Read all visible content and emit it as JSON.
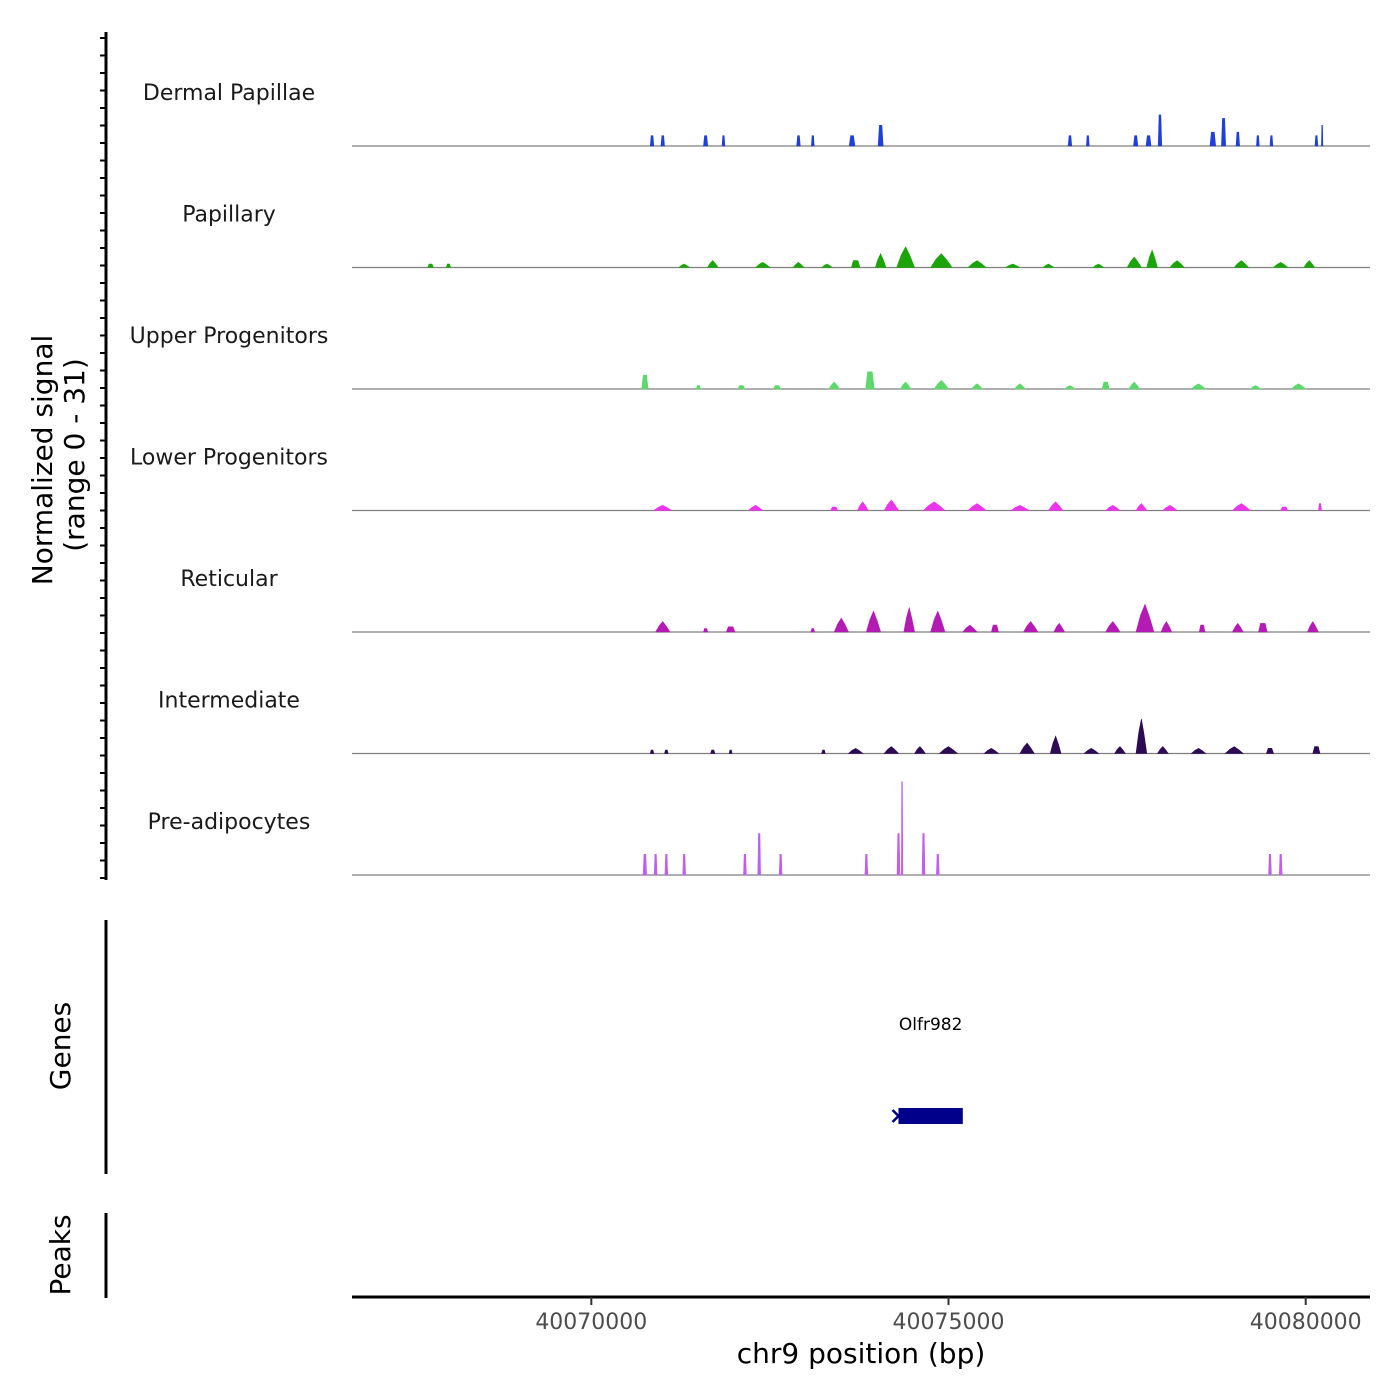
{
  "chart_data": {
    "type": "area",
    "title": "",
    "ylabel_line1": "Normalized signal",
    "ylabel_line2": "(range 0 - 31)",
    "xlabel": "chr9 position (bp)",
    "xlim": [
      40066650,
      40080900
    ],
    "ylim": [
      0,
      31
    ],
    "x_ticks": [
      40070000,
      40075000,
      40080000
    ],
    "x_tick_labels": [
      "40070000",
      "40075000",
      "40080000"
    ],
    "series": [
      {
        "name": "Dermal Papillae",
        "color": "#1f3fdc",
        "peaks": [
          [
            40070850,
            50,
            3
          ],
          [
            40071000,
            50,
            3
          ],
          [
            40071600,
            60,
            3
          ],
          [
            40071850,
            40,
            3
          ],
          [
            40072900,
            50,
            3
          ],
          [
            40073100,
            40,
            3
          ],
          [
            40073650,
            80,
            3
          ],
          [
            40074050,
            70,
            6
          ],
          [
            40076700,
            50,
            3
          ],
          [
            40076950,
            40,
            3
          ],
          [
            40077620,
            60,
            3
          ],
          [
            40077800,
            70,
            3
          ],
          [
            40077960,
            50,
            9
          ],
          [
            40078700,
            80,
            4
          ],
          [
            40078850,
            60,
            8
          ],
          [
            40079050,
            50,
            4
          ],
          [
            40079330,
            40,
            3
          ],
          [
            40079520,
            40,
            3
          ],
          [
            40080150,
            40,
            3
          ],
          [
            40080230,
            20,
            6
          ]
        ]
      },
      {
        "name": "Papillary",
        "color": "#1ba50b",
        "peaks": [
          [
            40067750,
            80,
            1
          ],
          [
            40068000,
            60,
            1
          ],
          [
            40071300,
            150,
            1
          ],
          [
            40071700,
            150,
            2
          ],
          [
            40072400,
            200,
            1.5
          ],
          [
            40072900,
            150,
            1.5
          ],
          [
            40073300,
            150,
            1
          ],
          [
            40073700,
            120,
            2
          ],
          [
            40074050,
            150,
            4
          ],
          [
            40074400,
            250,
            6
          ],
          [
            40074900,
            300,
            4
          ],
          [
            40075400,
            250,
            2
          ],
          [
            40075900,
            200,
            1
          ],
          [
            40076400,
            150,
            1
          ],
          [
            40077100,
            150,
            1
          ],
          [
            40077600,
            200,
            3
          ],
          [
            40077850,
            150,
            5
          ],
          [
            40078200,
            200,
            2
          ],
          [
            40079100,
            200,
            2
          ],
          [
            40079650,
            200,
            1.5
          ],
          [
            40080050,
            150,
            2
          ]
        ]
      },
      {
        "name": "Upper Progenitors",
        "color": "#5dd86a",
        "peaks": [
          [
            40070750,
            90,
            4
          ],
          [
            40071500,
            60,
            1
          ],
          [
            40072100,
            100,
            1
          ],
          [
            40072600,
            100,
            1
          ],
          [
            40073400,
            150,
            2
          ],
          [
            40073900,
            120,
            5
          ],
          [
            40074400,
            150,
            2
          ],
          [
            40074900,
            200,
            2.5
          ],
          [
            40075400,
            150,
            1.5
          ],
          [
            40076000,
            150,
            1.5
          ],
          [
            40076700,
            150,
            1
          ],
          [
            40077200,
            100,
            2
          ],
          [
            40077600,
            150,
            2
          ],
          [
            40078500,
            200,
            1.5
          ],
          [
            40079300,
            150,
            1
          ],
          [
            40079900,
            200,
            1.5
          ]
        ]
      },
      {
        "name": "Lower Progenitors",
        "color": "#ea35ea",
        "peaks": [
          [
            40071000,
            250,
            1.5
          ],
          [
            40072300,
            200,
            1.5
          ],
          [
            40073400,
            100,
            1
          ],
          [
            40073800,
            150,
            2.5
          ],
          [
            40074200,
            200,
            3
          ],
          [
            40074800,
            300,
            2.5
          ],
          [
            40075400,
            250,
            2
          ],
          [
            40076000,
            250,
            1.5
          ],
          [
            40076500,
            200,
            2.5
          ],
          [
            40077300,
            200,
            1.5
          ],
          [
            40077700,
            150,
            2
          ],
          [
            40078100,
            200,
            1.5
          ],
          [
            40079100,
            250,
            2
          ],
          [
            40079700,
            100,
            1
          ],
          [
            40080200,
            40,
            2
          ]
        ]
      },
      {
        "name": "Reticular",
        "color": "#b31bb3",
        "peaks": [
          [
            40071000,
            200,
            3
          ],
          [
            40071600,
            60,
            1
          ],
          [
            40071950,
            120,
            1.5
          ],
          [
            40073100,
            50,
            1
          ],
          [
            40073500,
            200,
            4
          ],
          [
            40073950,
            200,
            6
          ],
          [
            40074450,
            150,
            7
          ],
          [
            40074850,
            200,
            6
          ],
          [
            40075300,
            200,
            2
          ],
          [
            40075650,
            100,
            2
          ],
          [
            40076150,
            200,
            3
          ],
          [
            40076550,
            150,
            2.5
          ],
          [
            40077300,
            200,
            3
          ],
          [
            40077750,
            250,
            8
          ],
          [
            40078050,
            150,
            3
          ],
          [
            40078550,
            80,
            2
          ],
          [
            40079050,
            150,
            2.5
          ],
          [
            40079400,
            120,
            2.5
          ],
          [
            40080100,
            150,
            3
          ]
        ]
      },
      {
        "name": "Intermediate",
        "color": "#2d0a54",
        "peaks": [
          [
            40070850,
            50,
            1
          ],
          [
            40071050,
            50,
            1
          ],
          [
            40071700,
            60,
            1
          ],
          [
            40071950,
            40,
            1
          ],
          [
            40073250,
            50,
            1
          ],
          [
            40073700,
            200,
            1.5
          ],
          [
            40074200,
            200,
            2
          ],
          [
            40074600,
            150,
            2
          ],
          [
            40075000,
            250,
            2
          ],
          [
            40075600,
            200,
            1.5
          ],
          [
            40076100,
            200,
            3
          ],
          [
            40076500,
            150,
            5
          ],
          [
            40077000,
            200,
            1.5
          ],
          [
            40077400,
            150,
            2
          ],
          [
            40077700,
            150,
            10
          ],
          [
            40078000,
            150,
            2
          ],
          [
            40078500,
            200,
            1.5
          ],
          [
            40079000,
            250,
            2
          ],
          [
            40079500,
            100,
            1.5
          ],
          [
            40080150,
            100,
            2
          ]
        ]
      },
      {
        "name": "Pre-adipocytes",
        "color": "#c15ef2",
        "peaks": [
          [
            40070750,
            50,
            6
          ],
          [
            40070900,
            40,
            6
          ],
          [
            40071050,
            40,
            6
          ],
          [
            40071300,
            40,
            6
          ],
          [
            40072150,
            40,
            6
          ],
          [
            40072350,
            40,
            12
          ],
          [
            40072650,
            40,
            6
          ],
          [
            40073850,
            40,
            6
          ],
          [
            40074300,
            40,
            12
          ],
          [
            40074350,
            20,
            27
          ],
          [
            40074650,
            40,
            12
          ],
          [
            40074850,
            40,
            6
          ],
          [
            40079500,
            40,
            6
          ],
          [
            40079650,
            40,
            6
          ]
        ]
      }
    ],
    "genes_title": "Genes",
    "peaks_title": "Peaks",
    "genes": [
      {
        "name": "Olfr982",
        "start": 40074300,
        "end": 40075200,
        "strand": "-",
        "color": "#00008b"
      }
    ]
  }
}
